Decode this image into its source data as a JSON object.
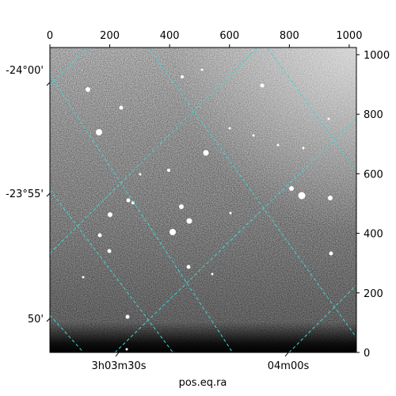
{
  "axes": {
    "top_ticks": [
      "0",
      "200",
      "400",
      "600",
      "800",
      "1000"
    ],
    "right_ticks": [
      "0",
      "200",
      "400",
      "600",
      "800",
      "1000"
    ],
    "left_labels": [
      "-24°00'",
      "-23°55'",
      "50'"
    ],
    "bottom_labels": [
      "3h03m30s",
      "04m00s"
    ],
    "xlabel": "pos.eq.ra"
  },
  "colors": {
    "grid": "#3fd6d6",
    "frame": "#000000",
    "sky_dark": "#1a1a1a",
    "sky_light": "#d8d8d8"
  },
  "pixel_range": {
    "x": [
      0,
      1024
    ],
    "y": [
      0,
      1024
    ]
  }
}
